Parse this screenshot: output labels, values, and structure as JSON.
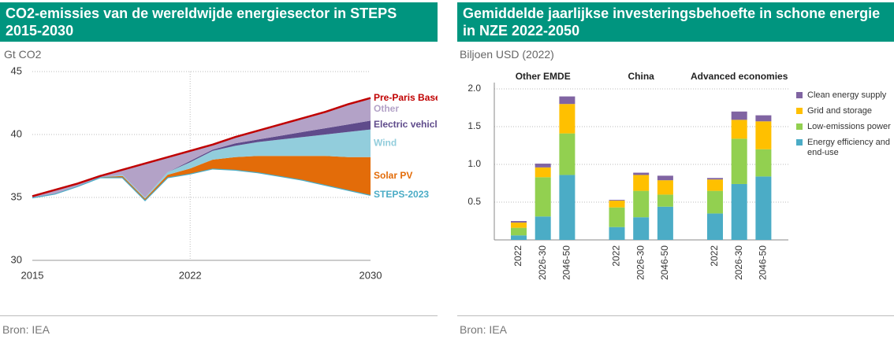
{
  "chart_data": [
    {
      "type": "area",
      "title": "CO2-emissies van de wereldwijde energiesector in STEPS 2015-2030",
      "y_label": "Gt CO2",
      "source": "Bron: IEA",
      "x": [
        2015,
        2016,
        2017,
        2018,
        2019,
        2020,
        2021,
        2022,
        2023,
        2024,
        2025,
        2026,
        2027,
        2028,
        2029,
        2030
      ],
      "xlim": [
        2015,
        2030
      ],
      "xticks": [
        2015,
        2022,
        2030
      ],
      "ylim": [
        30,
        45
      ],
      "yticks": [
        30,
        35,
        40,
        45
      ],
      "grid": true,
      "series": [
        {
          "name": "STEPS-2023",
          "color": "#4bacc6",
          "stacked": true,
          "style": "line",
          "values": [
            35.0,
            35.3,
            35.9,
            36.6,
            36.6,
            34.8,
            36.6,
            36.9,
            37.3,
            37.2,
            37.0,
            36.7,
            36.4,
            36.0,
            35.6,
            35.2
          ]
        },
        {
          "name": "Solar PV",
          "color": "#e36c09",
          "stacked": true,
          "style": "area",
          "values": [
            0,
            0,
            0,
            0,
            0.1,
            0.1,
            0.2,
            0.4,
            0.7,
            1.0,
            1.3,
            1.6,
            1.9,
            2.3,
            2.6,
            3.0
          ]
        },
        {
          "name": "Wind",
          "color": "#92cddc",
          "stacked": true,
          "style": "area",
          "values": [
            0,
            0,
            0,
            0,
            0.1,
            0.1,
            0.2,
            0.5,
            0.7,
            0.9,
            1.1,
            1.3,
            1.5,
            1.7,
            2.0,
            2.2
          ]
        },
        {
          "name": "Electric vehicles",
          "color": "#5f4b8b",
          "stacked": true,
          "style": "area",
          "values": [
            0,
            0,
            0,
            0,
            0,
            0,
            0,
            0.1,
            0.1,
            0.2,
            0.2,
            0.3,
            0.4,
            0.5,
            0.6,
            0.7
          ]
        },
        {
          "name": "Other",
          "color": "#b3a2c7",
          "stacked": true,
          "style": "area",
          "values": [
            0.1,
            0.3,
            0.2,
            0.1,
            0.4,
            2.7,
            1.2,
            0.8,
            0.4,
            0.5,
            0.7,
            0.9,
            1.1,
            1.3,
            1.6,
            1.8
          ]
        },
        {
          "name": "Pre-Paris Baseline",
          "color": "#c00000",
          "stacked": false,
          "style": "line",
          "values": [
            35.1,
            35.6,
            36.1,
            36.7,
            37.2,
            37.7,
            38.2,
            38.7,
            39.2,
            39.8,
            40.3,
            40.8,
            41.3,
            41.8,
            42.4,
            42.9
          ]
        }
      ]
    },
    {
      "type": "bar",
      "stacked": true,
      "title": "Gemiddelde jaarlijkse investeringsbehoefte in schone energie in NZE 2022-2050",
      "y_label": "Biljoen USD (2022)",
      "source": "Bron: IEA",
      "groups": [
        "Other EMDE",
        "China",
        "Advanced economies"
      ],
      "categories": [
        "2022",
        "2026-30",
        "2046-50",
        "2022",
        "2026-30",
        "2046-50",
        "2022",
        "2026-30",
        "2046-50"
      ],
      "ylim": [
        0,
        2.0
      ],
      "yticks": [
        0.5,
        {
          "value": 1.0,
          "label": "1.0"
        },
        1.5,
        {
          "value": 2.0,
          "label": "2.0"
        }
      ],
      "grid": true,
      "legend": "right",
      "series": [
        {
          "name": "Energy efficiency and end-use",
          "color": "#4bacc6",
          "values": [
            0.06,
            0.31,
            0.86,
            0.17,
            0.3,
            0.44,
            0.35,
            0.74,
            0.84
          ]
        },
        {
          "name": "Low-emissions power",
          "color": "#92d050",
          "values": [
            0.1,
            0.52,
            0.55,
            0.26,
            0.35,
            0.16,
            0.3,
            0.6,
            0.36
          ]
        },
        {
          "name": "Grid and storage",
          "color": "#ffc000",
          "values": [
            0.07,
            0.13,
            0.39,
            0.09,
            0.21,
            0.19,
            0.15,
            0.25,
            0.37
          ]
        },
        {
          "name": "Clean energy supply",
          "color": "#8064a2",
          "values": [
            0.02,
            0.05,
            0.1,
            0.01,
            0.03,
            0.06,
            0.02,
            0.11,
            0.08
          ]
        }
      ]
    }
  ]
}
